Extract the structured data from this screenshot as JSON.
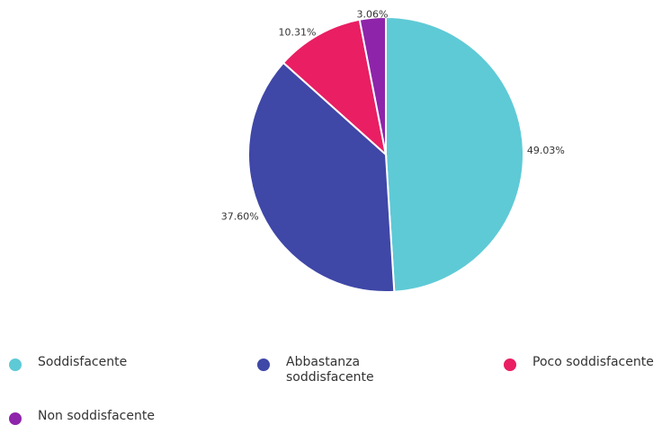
{
  "chart_data": {
    "type": "pie",
    "slices": [
      {
        "name": "Soddisfacente",
        "value": 49.03,
        "label": "49.03%",
        "color": "#5ecad6"
      },
      {
        "name": "Abbastanza soddisfacente",
        "value": 37.6,
        "label": "37.60%",
        "color": "#3f47a7"
      },
      {
        "name": "Poco soddisfacente",
        "value": 10.31,
        "label": "10.31%",
        "color": "#e91e63"
      },
      {
        "name": "Non soddisfacente",
        "value": 3.06,
        "label": "3.06%",
        "color": "#8e24aa"
      }
    ],
    "start_angle_deg": 0,
    "direction": "clockwise",
    "legend_position": "bottom"
  },
  "legend": {
    "items": [
      {
        "label": "Soddisfacente",
        "color": "#5ecad6"
      },
      {
        "label": "Abbastanza soddisfacente",
        "color": "#3f47a7"
      },
      {
        "label": "Poco soddisfacente",
        "color": "#e91e63"
      },
      {
        "label": "Non soddisfacente",
        "color": "#8e24aa"
      }
    ]
  }
}
